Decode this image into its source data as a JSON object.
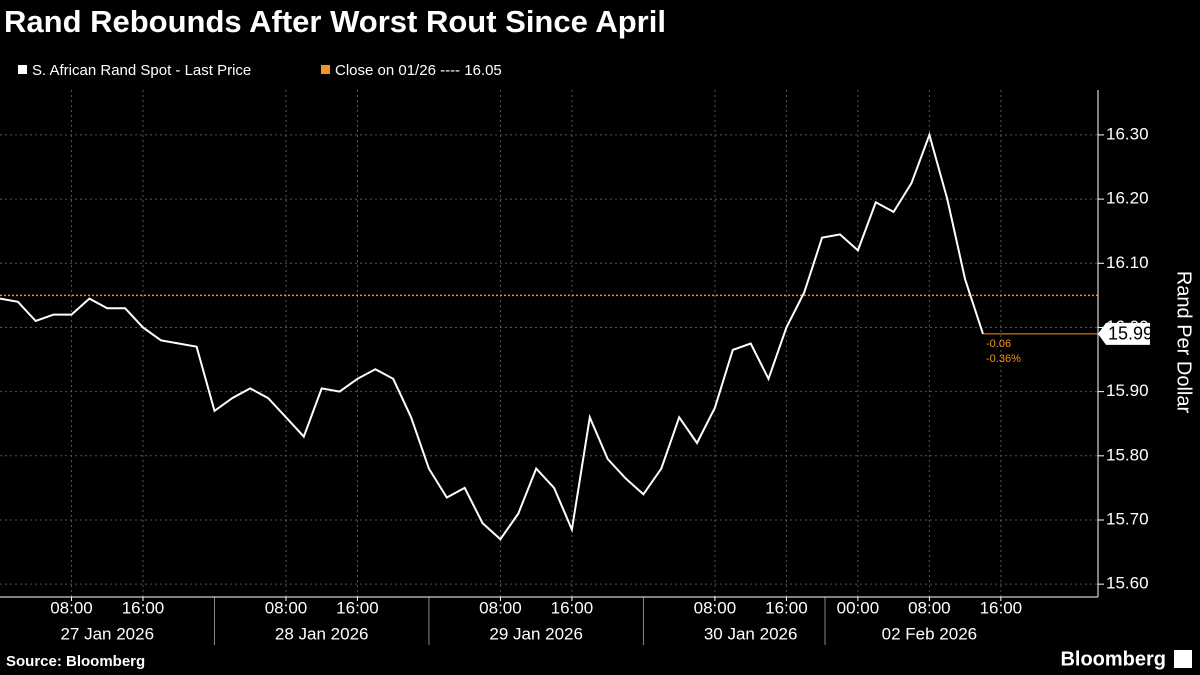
{
  "chart_data": {
    "type": "line",
    "title": "Rand Rebounds After Worst Rout Since April",
    "source": "Source: Bloomberg",
    "brand": "Bloomberg",
    "y_axis_label": "Rand Per Dollar",
    "x": [
      "2026-01-27 00:00",
      "2026-01-27 02:00",
      "2026-01-27 04:00",
      "2026-01-27 06:00",
      "2026-01-27 08:00",
      "2026-01-27 10:00",
      "2026-01-27 12:00",
      "2026-01-27 14:00",
      "2026-01-27 16:00",
      "2026-01-27 18:00",
      "2026-01-27 20:00",
      "2026-01-27 22:00",
      "2026-01-28 00:00",
      "2026-01-28 02:00",
      "2026-01-28 04:00",
      "2026-01-28 06:00",
      "2026-01-28 08:00",
      "2026-01-28 10:00",
      "2026-01-28 12:00",
      "2026-01-28 14:00",
      "2026-01-28 16:00",
      "2026-01-28 18:00",
      "2026-01-28 20:00",
      "2026-01-28 22:00",
      "2026-01-29 00:00",
      "2026-01-29 02:00",
      "2026-01-29 04:00",
      "2026-01-29 06:00",
      "2026-01-29 08:00",
      "2026-01-29 10:00",
      "2026-01-29 12:00",
      "2026-01-29 14:00",
      "2026-01-29 16:00",
      "2026-01-29 18:00",
      "2026-01-29 20:00",
      "2026-01-29 22:00",
      "2026-01-30 00:00",
      "2026-01-30 02:00",
      "2026-01-30 04:00",
      "2026-01-30 06:00",
      "2026-01-30 08:00",
      "2026-01-30 10:00",
      "2026-01-30 12:00",
      "2026-01-30 14:00",
      "2026-01-30 16:00",
      "2026-01-30 18:00",
      "2026-01-30 20:00",
      "2026-01-30 22:00",
      "2026-02-02 00:00",
      "2026-02-02 02:00",
      "2026-02-02 04:00",
      "2026-02-02 06:00",
      "2026-02-02 08:00",
      "2026-02-02 10:00",
      "2026-02-02 12:00",
      "2026-02-02 14:00"
    ],
    "series": [
      {
        "name": "S. African Rand Spot - Last Price",
        "color": "#ffffff",
        "values": [
          16.045,
          16.04,
          16.01,
          16.02,
          16.02,
          16.045,
          16.03,
          16.03,
          16.0,
          15.98,
          15.975,
          15.97,
          15.87,
          15.89,
          15.905,
          15.89,
          15.86,
          15.83,
          15.905,
          15.9,
          15.92,
          15.935,
          15.92,
          15.86,
          15.78,
          15.735,
          15.75,
          15.695,
          15.67,
          15.71,
          15.78,
          15.75,
          15.685,
          15.86,
          15.795,
          15.765,
          15.74,
          15.78,
          15.86,
          15.82,
          15.875,
          15.965,
          15.975,
          15.92,
          16.0,
          16.055,
          16.14,
          16.145,
          16.12,
          16.195,
          16.18,
          16.225,
          16.3,
          16.2,
          16.075,
          15.99
        ]
      }
    ],
    "reference_line": {
      "label": "Close on 01/26 ---- 16.05",
      "value": 16.05,
      "color": "#f7931e"
    },
    "annotations": [
      "-0.06",
      "-0.36%"
    ],
    "ylim": [
      15.58,
      16.37
    ],
    "yticks": [
      {
        "value": 15.6,
        "label": "15.60"
      },
      {
        "value": 15.7,
        "label": "15.70"
      },
      {
        "value": 15.8,
        "label": "15.80"
      },
      {
        "value": 15.9,
        "label": "15.90"
      },
      {
        "value": 16.0,
        "label": "16.00"
      },
      {
        "value": 16.1,
        "label": "16.10"
      },
      {
        "value": 16.2,
        "label": "16.20"
      },
      {
        "value": 16.3,
        "label": "16.30"
      }
    ],
    "xticks": [
      {
        "value": "2026-01-27 08:00",
        "label": "08:00"
      },
      {
        "value": "2026-01-27 16:00",
        "label": "16:00"
      },
      {
        "value": "2026-01-28 08:00",
        "label": "08:00"
      },
      {
        "value": "2026-01-28 16:00",
        "label": "16:00"
      },
      {
        "value": "2026-01-29 08:00",
        "label": "08:00"
      },
      {
        "value": "2026-01-29 16:00",
        "label": "16:00"
      },
      {
        "value": "2026-01-30 08:00",
        "label": "08:00"
      },
      {
        "value": "2026-01-30 16:00",
        "label": "16:00"
      },
      {
        "value": "2026-02-02 00:00",
        "label": "00:00"
      },
      {
        "value": "2026-02-02 08:00",
        "label": "08:00"
      },
      {
        "value": "2026-02-02 16:00",
        "label": "16:00"
      }
    ],
    "xdates": [
      {
        "value": "2026-01-27 12:00",
        "label": "27 Jan 2026"
      },
      {
        "value": "2026-01-28 12:00",
        "label": "28 Jan 2026"
      },
      {
        "value": "2026-01-29 12:00",
        "label": "29 Jan 2026"
      },
      {
        "value": "2026-01-30 12:00",
        "label": "30 Jan 2026"
      },
      {
        "value": "2026-02-02 08:00",
        "label": "02 Feb 2026"
      }
    ],
    "grid": true
  }
}
